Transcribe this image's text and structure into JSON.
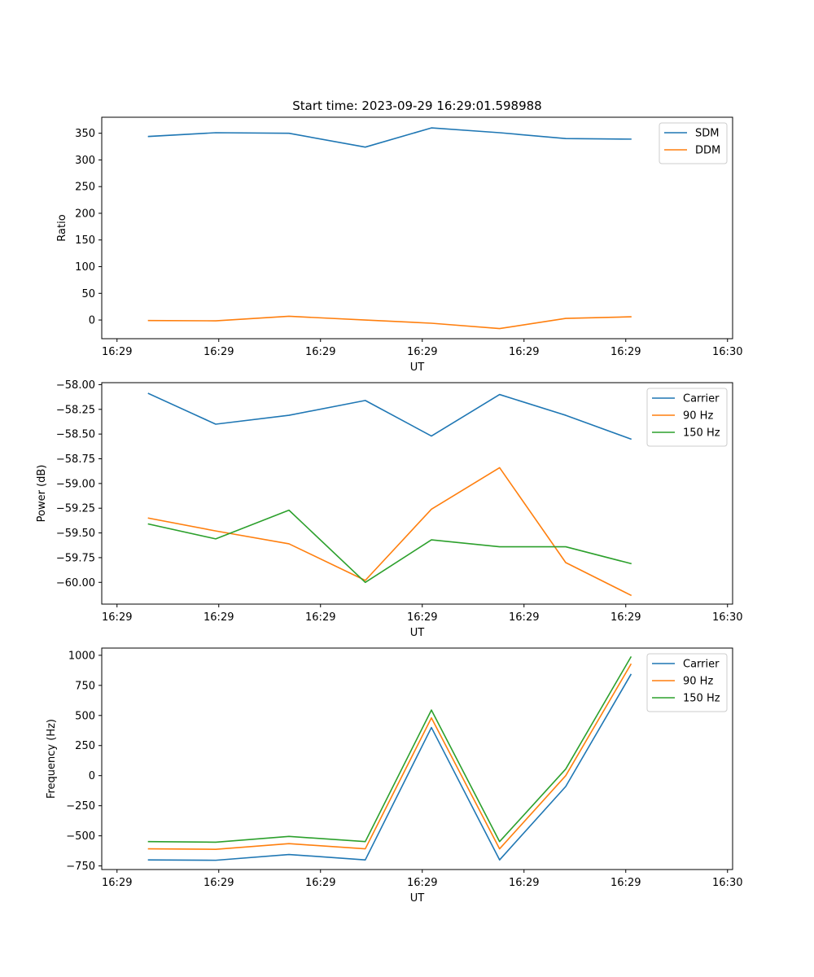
{
  "chart_data": [
    {
      "type": "line",
      "title": "Start time: 2023-09-29 16:29:01.598988",
      "xlabel": "UT",
      "ylabel": "Ratio",
      "x_tick_labels": [
        "16:29",
        "16:29",
        "16:29",
        "16:29",
        "16:29",
        "16:29",
        "16:30"
      ],
      "x_tick_values": [
        0,
        10,
        20,
        30,
        40,
        50,
        60
      ],
      "xlim": [
        -1.5,
        60.5
      ],
      "x": [
        3.1,
        9.7,
        16.9,
        24.4,
        30.9,
        37.6,
        44.1,
        50.5
      ],
      "ylim": [
        -35,
        380
      ],
      "y_ticks": [
        0,
        50,
        100,
        150,
        200,
        250,
        300,
        350
      ],
      "y_tick_labels": [
        "0",
        "50",
        "100",
        "150",
        "200",
        "250",
        "300",
        "350"
      ],
      "legend_position": "top-right",
      "series": [
        {
          "name": "SDM",
          "color": "#1f77b4",
          "values": [
            344,
            351,
            350,
            324,
            360,
            351,
            340,
            339
          ]
        },
        {
          "name": "DDM",
          "color": "#ff7f0e",
          "values": [
            -1,
            -1.5,
            7,
            0,
            -6,
            -16,
            3,
            6
          ]
        }
      ]
    },
    {
      "type": "line",
      "title": "",
      "xlabel": "UT",
      "ylabel": "Power (dB)",
      "x_tick_labels": [
        "16:29",
        "16:29",
        "16:29",
        "16:29",
        "16:29",
        "16:29",
        "16:30"
      ],
      "x_tick_values": [
        0,
        10,
        20,
        30,
        40,
        50,
        60
      ],
      "xlim": [
        -1.5,
        60.5
      ],
      "x": [
        3.1,
        9.7,
        16.9,
        24.4,
        30.9,
        37.6,
        44.1,
        50.5
      ],
      "ylim": [
        -60.22,
        -57.98
      ],
      "y_ticks": [
        -60.0,
        -59.75,
        -59.5,
        -59.25,
        -59.0,
        -58.75,
        -58.5,
        -58.25,
        -58.0
      ],
      "y_tick_labels": [
        "−60.00",
        "−59.75",
        "−59.50",
        "−59.25",
        "−59.00",
        "−58.75",
        "−58.50",
        "−58.25",
        "−58.00"
      ],
      "legend_position": "top-right",
      "series": [
        {
          "name": "Carrier",
          "color": "#1f77b4",
          "values": [
            -58.09,
            -58.4,
            -58.31,
            -58.16,
            -58.52,
            -58.1,
            -58.31,
            -58.55
          ]
        },
        {
          "name": "90 Hz",
          "color": "#ff7f0e",
          "values": [
            -59.35,
            -59.48,
            -59.61,
            -59.98,
            -59.26,
            -58.84,
            -59.8,
            -60.13
          ]
        },
        {
          "name": "150 Hz",
          "color": "#2ca02c",
          "values": [
            -59.41,
            -59.56,
            -59.27,
            -60.0,
            -59.57,
            -59.64,
            -59.64,
            -59.81
          ]
        }
      ]
    },
    {
      "type": "line",
      "title": "",
      "xlabel": "UT",
      "ylabel": "Frequency (Hz)",
      "x_tick_labels": [
        "16:29",
        "16:29",
        "16:29",
        "16:29",
        "16:29",
        "16:29",
        "16:30"
      ],
      "x_tick_values": [
        0,
        10,
        20,
        30,
        40,
        50,
        60
      ],
      "xlim": [
        -1.5,
        60.5
      ],
      "x": [
        3.1,
        9.7,
        16.9,
        24.4,
        30.9,
        37.6,
        44.1,
        50.5
      ],
      "ylim": [
        -780,
        1060
      ],
      "y_ticks": [
        -750,
        -500,
        -250,
        0,
        250,
        500,
        750,
        1000
      ],
      "y_tick_labels": [
        "−750",
        "−500",
        "−250",
        "0",
        "250",
        "500",
        "750",
        "1000"
      ],
      "legend_position": "top-right",
      "series": [
        {
          "name": "Carrier",
          "color": "#1f77b4",
          "values": [
            -700,
            -703,
            -655,
            -700,
            400,
            -700,
            -90,
            840
          ]
        },
        {
          "name": "90 Hz",
          "color": "#ff7f0e",
          "values": [
            -608,
            -612,
            -565,
            -608,
            480,
            -608,
            0,
            925
          ]
        },
        {
          "name": "150 Hz",
          "color": "#2ca02c",
          "values": [
            -548,
            -553,
            -505,
            -548,
            545,
            -548,
            55,
            985
          ]
        }
      ]
    }
  ]
}
